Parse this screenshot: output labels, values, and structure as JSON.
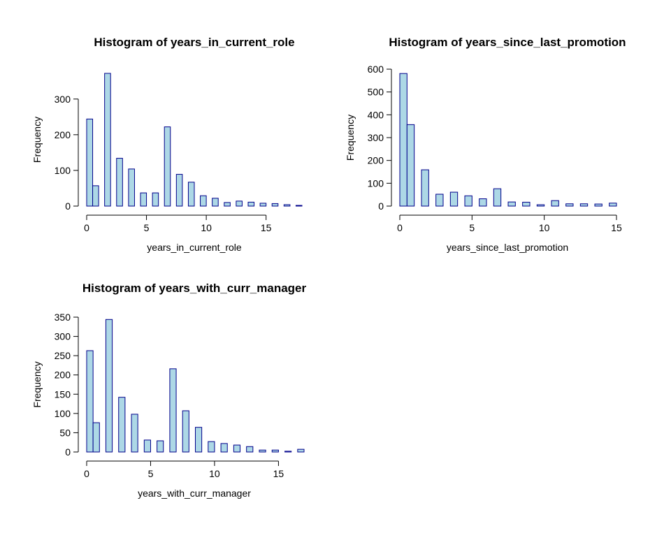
{
  "chart_data": [
    {
      "type": "histogram",
      "title": "Histogram of years_in_current_role",
      "xlabel": "years_in_current_role",
      "ylabel": "Frequency",
      "bins": [
        0,
        0.5,
        1,
        1.5,
        2,
        2.5,
        3,
        3.5,
        4,
        4.5,
        5,
        5.5,
        6,
        6.5,
        7,
        7.5,
        8,
        8.5,
        9,
        9.5,
        10,
        10.5,
        11,
        11.5,
        12,
        12.5,
        13,
        13.5,
        14,
        14.5,
        15,
        15.5,
        16,
        16.5,
        17,
        17.5,
        18
      ],
      "values": [
        244,
        57,
        0,
        372,
        0,
        134,
        0,
        104,
        0,
        37,
        0,
        37,
        0,
        222,
        0,
        89,
        0,
        67,
        0,
        29,
        0,
        22,
        0,
        10,
        0,
        14,
        0,
        11,
        0,
        8,
        0,
        7,
        0,
        4,
        0,
        2
      ],
      "xlim": [
        0,
        18
      ],
      "xticks": [
        0,
        5,
        10,
        15
      ],
      "ylim": [
        0,
        372
      ],
      "yticks": [
        0,
        100,
        200,
        300
      ],
      "color": "#add8e6",
      "edgecolor": "#00008b"
    },
    {
      "type": "histogram",
      "title": "Histogram of years_since_last_promotion",
      "xlabel": "years_since_last_promotion",
      "ylabel": "Frequency",
      "bins": [
        0,
        0.5,
        1,
        1.5,
        2,
        2.5,
        3,
        3.5,
        4,
        4.5,
        5,
        5.5,
        6,
        6.5,
        7,
        7.5,
        8,
        8.5,
        9,
        9.5,
        10,
        10.5,
        11,
        11.5,
        12,
        12.5,
        13,
        13.5,
        14,
        14.5,
        15
      ],
      "values": [
        581,
        357,
        0,
        159,
        0,
        52,
        0,
        61,
        0,
        45,
        0,
        32,
        0,
        76,
        0,
        18,
        0,
        17,
        0,
        6,
        0,
        24,
        0,
        10,
        0,
        10,
        0,
        9,
        0,
        13
      ],
      "xlim": [
        0,
        15
      ],
      "xticks": [
        0,
        5,
        10,
        15
      ],
      "ylim": [
        0,
        600
      ],
      "yticks": [
        0,
        100,
        200,
        300,
        400,
        500,
        600
      ],
      "color": "#add8e6",
      "edgecolor": "#00008b"
    },
    {
      "type": "histogram",
      "title": "Histogram of years_with_curr_manager",
      "xlabel": "years_with_curr_manager",
      "ylabel": "Frequency",
      "bins": [
        0,
        0.5,
        1,
        1.5,
        2,
        2.5,
        3,
        3.5,
        4,
        4.5,
        5,
        5.5,
        6,
        6.5,
        7,
        7.5,
        8,
        8.5,
        9,
        9.5,
        10,
        10.5,
        11,
        11.5,
        12,
        12.5,
        13,
        13.5,
        14,
        14.5,
        15,
        15.5,
        16,
        16.5,
        17
      ],
      "values": [
        263,
        76,
        0,
        344,
        0,
        142,
        0,
        98,
        0,
        31,
        0,
        29,
        0,
        216,
        0,
        107,
        0,
        64,
        0,
        27,
        0,
        22,
        0,
        18,
        0,
        14,
        0,
        5,
        0,
        5,
        0,
        2,
        0,
        7
      ],
      "xlim": [
        0,
        17
      ],
      "xticks": [
        0,
        5,
        10,
        15
      ],
      "ylim": [
        0,
        350
      ],
      "yticks": [
        0,
        50,
        100,
        150,
        200,
        250,
        300,
        350
      ],
      "color": "#add8e6",
      "edgecolor": "#00008b"
    }
  ]
}
